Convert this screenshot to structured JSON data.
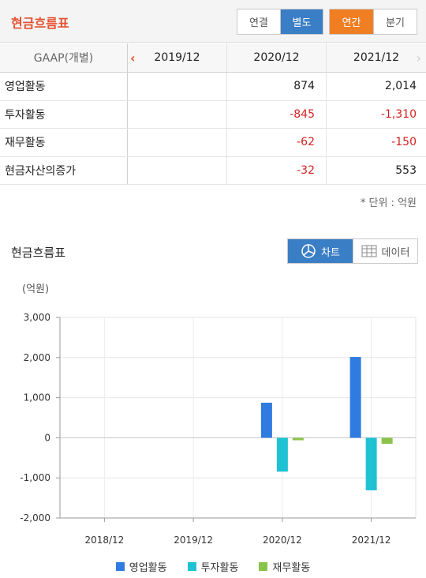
{
  "header": {
    "title": "현금흐름표",
    "consolidation": {
      "options": [
        "연결",
        "별도"
      ],
      "active": 1
    },
    "period": {
      "options": [
        "연간",
        "분기"
      ],
      "active": 0
    }
  },
  "table": {
    "corner": "GAAP(개별)",
    "columns": [
      "2019/12",
      "2020/12",
      "2021/12"
    ],
    "rows": [
      {
        "label": "영업활동",
        "values": [
          "",
          "874",
          "2,014"
        ]
      },
      {
        "label": "투자활동",
        "values": [
          "",
          "-845",
          "-1,310"
        ]
      },
      {
        "label": "재무활동",
        "values": [
          "",
          "-62",
          "-150"
        ]
      },
      {
        "label": "현금자산의증가",
        "values": [
          "",
          "-32",
          "553"
        ]
      }
    ],
    "unit_note": "* 단위 : 억원"
  },
  "chart_section": {
    "title": "현금흐름표",
    "view_toggle": {
      "chart_label": "차트",
      "data_label": "데이터",
      "active": "chart"
    }
  },
  "chart_data": {
    "type": "bar",
    "categories": [
      "2018/12",
      "2019/12",
      "2020/12",
      "2021/12"
    ],
    "series": [
      {
        "name": "영업활동",
        "color": "#2f7be0",
        "values": [
          null,
          null,
          874,
          2014
        ]
      },
      {
        "name": "투자활동",
        "color": "#1fc2d2",
        "values": [
          null,
          null,
          -845,
          -1310
        ]
      },
      {
        "name": "재무활동",
        "color": "#8bc34a",
        "values": [
          null,
          null,
          -62,
          -150
        ]
      }
    ],
    "ylabel": "(억원)",
    "ylim": [
      -2000,
      3000
    ],
    "yticks": [
      3000,
      2000,
      1000,
      0,
      -1000,
      -2000
    ],
    "ytick_labels": [
      "3,000",
      "2,000",
      "1,000",
      "0",
      "-1,000",
      "-2,000"
    ],
    "grid": true,
    "legend": "bottom"
  }
}
